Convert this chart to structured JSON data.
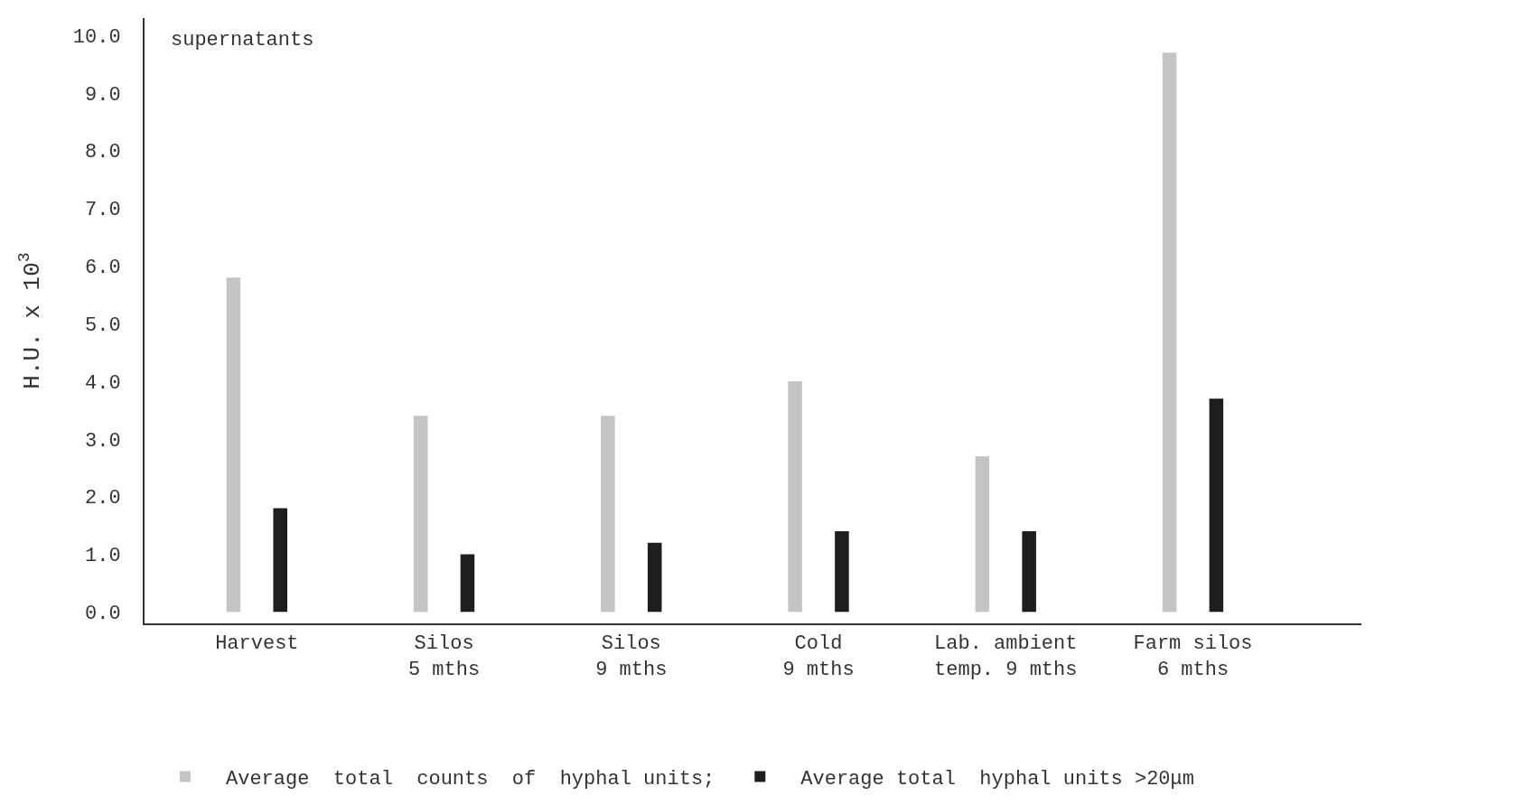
{
  "chart_data": {
    "type": "bar",
    "ylabel": "H.U. x 10$^{3}$",
    "categories": [
      "Harvest",
      "Silos\n5 mths",
      "Silos\n9 mths",
      "Cold\n9 mths",
      "Lab. ambient\ntemp. 9 mths",
      "Farm silos\n6 mths"
    ],
    "series": [
      {
        "name": "Average  total  counts  of  hyphal units;",
        "color": "#c4c4c4",
        "values": [
          5.8,
          3.4,
          3.4,
          4.0,
          2.7,
          9.7
        ]
      },
      {
        "name": "Average total  hyphal units >20μm",
        "color": "#1e1e1e",
        "values": [
          1.8,
          1.0,
          1.2,
          1.4,
          1.4,
          3.7
        ]
      }
    ],
    "ylim": [
      -0.2,
      10.3
    ],
    "yticks": [
      {
        "value": 0,
        "label": "0.0"
      },
      {
        "value": 1,
        "label": "1.0"
      },
      {
        "value": 2,
        "label": "2.0"
      },
      {
        "value": 3,
        "label": "3.0"
      },
      {
        "value": 4,
        "label": "4.0"
      },
      {
        "value": 5,
        "label": "5.0"
      },
      {
        "value": 6,
        "label": "6.0"
      },
      {
        "value": 7,
        "label": "7.0"
      },
      {
        "value": 8,
        "label": "8.0"
      },
      {
        "value": 9,
        "label": "9.0"
      },
      {
        "value": 10,
        "label": "10.0"
      }
    ],
    "annotations": [
      "supernatants"
    ],
    "legend": "bottom"
  }
}
